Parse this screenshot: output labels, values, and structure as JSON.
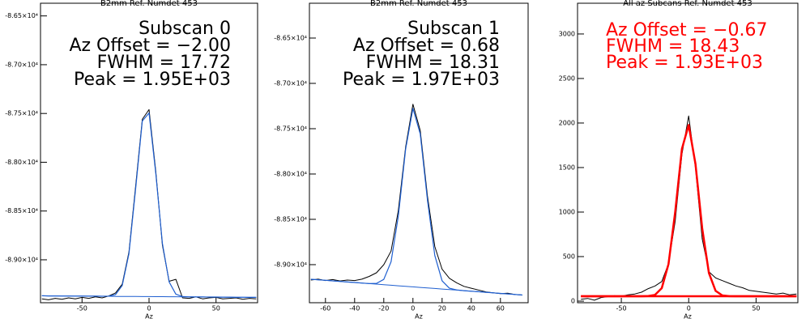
{
  "chart_data": [
    {
      "type": "line",
      "title": "B2mm Ref. Numdet 453",
      "x_label": "Az",
      "annotations": [
        "Subscan 0",
        "Az Offset = −2.00",
        "FWHM = 17.72",
        "Peak = 1.95E+03"
      ],
      "annotation_color": "#000000",
      "xlim": [
        -81,
        81
      ],
      "xticks": [
        -50,
        0,
        50
      ],
      "ylim": [
        -89440,
        -86370
      ],
      "yticks": [
        {
          "value": -86500,
          "label": "-8.65×10⁴"
        },
        {
          "value": -87000,
          "label": "-8.70×10⁴"
        },
        {
          "value": -87500,
          "label": "-8.75×10⁴"
        },
        {
          "value": -88000,
          "label": "-8.80×10⁴"
        },
        {
          "value": -88500,
          "label": "-8.85×10⁴"
        },
        {
          "value": -89000,
          "label": "-8.90×10⁴"
        }
      ],
      "x": [
        -80,
        -75,
        -70,
        -65,
        -60,
        -55,
        -50,
        -45,
        -40,
        -35,
        -30,
        -25,
        -20,
        -15,
        -10,
        -5,
        0,
        5,
        10,
        15,
        20,
        25,
        30,
        35,
        40,
        45,
        50,
        55,
        60,
        65,
        70,
        75,
        80
      ],
      "series": [
        {
          "color": "#000000",
          "line_width": 1,
          "values": [
            -89400,
            -89410,
            -89395,
            -89405,
            -89390,
            -89400,
            -89385,
            -89395,
            -89380,
            -89390,
            -89370,
            -89340,
            -89250,
            -88920,
            -88240,
            -87560,
            -87460,
            -88090,
            -88850,
            -89220,
            -89200,
            -89390,
            -89395,
            -89380,
            -89400,
            -89390,
            -89385,
            -89400,
            -89395,
            -89390,
            -89405,
            -89395,
            -89400
          ]
        },
        {
          "color": "#1f5fd0",
          "line_width": 1,
          "values": [
            -89369,
            -89370,
            -89370,
            -89371,
            -89371,
            -89372,
            -89372,
            -89373,
            -89373,
            -89374,
            -89374,
            -89375,
            -89375,
            -89376,
            -89376,
            -89377,
            -89377,
            -89378,
            -89378,
            -89379,
            -89379,
            -89380,
            -89380,
            -89381,
            -89381,
            -89382,
            -89382,
            -89383,
            -89383,
            -89384,
            -89384,
            -89385,
            -89385
          ]
        },
        {
          "color": "#1f5fd0",
          "line_width": 1.2,
          "values": [
            -89369,
            -89370,
            -89370,
            -89371,
            -89371,
            -89372,
            -89372,
            -89373,
            -89373,
            -89374,
            -89372,
            -89357,
            -89264,
            -88937,
            -88268,
            -87577,
            -87495,
            -88113,
            -88832,
            -89227,
            -89352,
            -89377,
            -89380,
            -89381,
            -89381,
            -89382,
            -89382,
            -89383,
            -89383,
            -89384,
            -89384,
            -89385,
            -89385
          ]
        }
      ]
    },
    {
      "type": "line",
      "title": "B2mm Ref. Numdet 453",
      "x_label": "Az",
      "annotations": [
        "Subscan 1",
        "Az Offset = 0.68",
        "FWHM = 18.31",
        "Peak = 1.97E+03"
      ],
      "annotation_color": "#000000",
      "xlim": [
        -71,
        79
      ],
      "xticks": [
        -60,
        -40,
        -20,
        0,
        20,
        40,
        60
      ],
      "ylim": [
        -89420,
        -86116
      ],
      "yticks": [
        {
          "value": -86500,
          "label": "-8.65×10⁴"
        },
        {
          "value": -87000,
          "label": "-8.70×10⁴"
        },
        {
          "value": -87500,
          "label": "-8.75×10⁴"
        },
        {
          "value": -88000,
          "label": "-8.80×10⁴"
        },
        {
          "value": -88500,
          "label": "-8.85×10⁴"
        },
        {
          "value": -89000,
          "label": "-8.90×10⁴"
        }
      ],
      "x": [
        -70,
        -65,
        -60,
        -55,
        -50,
        -45,
        -40,
        -35,
        -30,
        -25,
        -20,
        -15,
        -10,
        -5,
        0,
        5,
        10,
        15,
        20,
        25,
        30,
        35,
        40,
        45,
        50,
        55,
        60,
        65,
        70,
        75
      ],
      "series": [
        {
          "color": "#000000",
          "line_width": 1,
          "values": [
            -89170,
            -89160,
            -89175,
            -89165,
            -89180,
            -89170,
            -89175,
            -89160,
            -89130,
            -89090,
            -89000,
            -88850,
            -88400,
            -87700,
            -87230,
            -87520,
            -88250,
            -88800,
            -89050,
            -89150,
            -89200,
            -89240,
            -89260,
            -89280,
            -89300,
            -89310,
            -89320,
            -89315,
            -89330,
            -89335
          ]
        },
        {
          "color": "#1f5fd0",
          "line_width": 1,
          "values": [
            -89161,
            -89167,
            -89173,
            -89179,
            -89185,
            -89191,
            -89197,
            -89203,
            -89209,
            -89215,
            -89221,
            -89227,
            -89233,
            -89239,
            -89245,
            -89251,
            -89257,
            -89263,
            -89269,
            -89275,
            -89281,
            -89287,
            -89293,
            -89299,
            -89305,
            -89311,
            -89317,
            -89323,
            -89329,
            -89335
          ]
        },
        {
          "color": "#1f5fd0",
          "line_width": 1.2,
          "values": [
            -89161,
            -89167,
            -89173,
            -89179,
            -89185,
            -89191,
            -89197,
            -89203,
            -89208,
            -89207,
            -89163,
            -88968,
            -88462,
            -87725,
            -87276,
            -87557,
            -88293,
            -88899,
            -89178,
            -89260,
            -89279,
            -89287,
            -89293,
            -89299,
            -89305,
            -89311,
            -89317,
            -89323,
            -89329,
            -89335
          ]
        }
      ]
    },
    {
      "type": "line",
      "title": "All az Subcans Ref. Numdet 453",
      "x_label": "Az",
      "annotations": [
        "Az Offset = −0.67",
        "FWHM = 18.43",
        "Peak = 1.93E+03"
      ],
      "annotation_color": "#ff0000",
      "xlim": [
        -82.5,
        81
      ],
      "xticks": [
        -50,
        0,
        50
      ],
      "ylim": [
        -18,
        3345
      ],
      "yticks": [
        0,
        500,
        1000,
        1500,
        2000,
        2500,
        3000
      ],
      "x": [
        -80,
        -75,
        -70,
        -65,
        -60,
        -55,
        -50,
        -45,
        -40,
        -35,
        -30,
        -25,
        -20,
        -15,
        -10,
        -5,
        0,
        5,
        10,
        15,
        20,
        25,
        30,
        35,
        40,
        45,
        50,
        55,
        60,
        65,
        70,
        75,
        80
      ],
      "series": [
        {
          "color": "#000000",
          "line_width": 1,
          "values": [
            20,
            30,
            10,
            40,
            50,
            60,
            55,
            70,
            80,
            100,
            140,
            170,
            220,
            420,
            900,
            1650,
            2080,
            1500,
            700,
            330,
            260,
            230,
            200,
            170,
            150,
            120,
            110,
            100,
            90,
            80,
            90,
            70,
            80
          ]
        },
        {
          "color": "#ff0000",
          "line_width": 2.5,
          "values": [
            55,
            55,
            55,
            55,
            55,
            55,
            55,
            55,
            55,
            55,
            55,
            55,
            55,
            55,
            55,
            55,
            55,
            55,
            55,
            55,
            55,
            55,
            55,
            55,
            55,
            55,
            55,
            55,
            55,
            55,
            55,
            55,
            55
          ]
        },
        {
          "color": "#ff0000",
          "line_width": 2.5,
          "values": [
            55,
            55,
            55,
            55,
            55,
            55,
            55,
            55,
            55,
            55,
            57,
            70,
            146,
            416,
            1004,
            1711,
            1978,
            1541,
            818,
            316,
            115,
            64,
            56,
            55,
            55,
            55,
            55,
            55,
            55,
            55,
            55,
            55,
            55
          ]
        }
      ]
    }
  ]
}
